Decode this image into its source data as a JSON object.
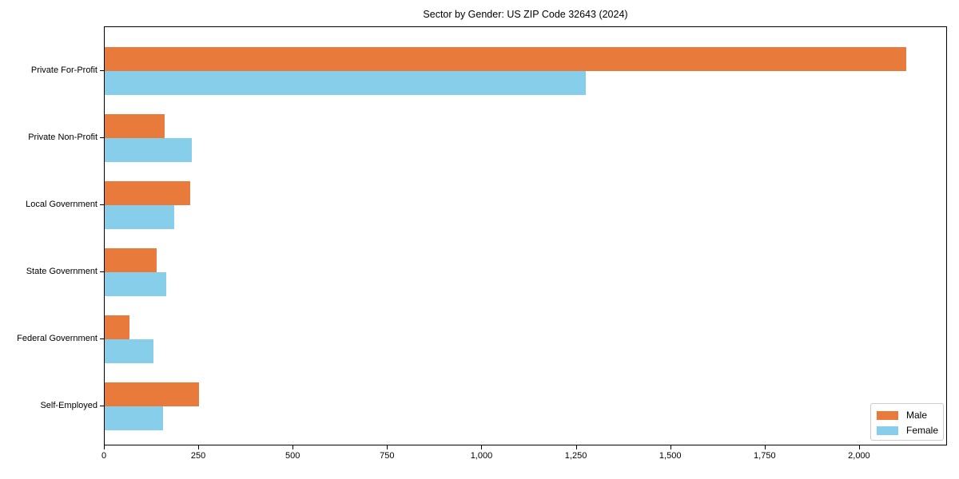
{
  "title": "Sector by Gender: US ZIP Code 32643 (2024)",
  "chart_data": {
    "type": "bar",
    "orientation": "horizontal",
    "title": "Sector by Gender: US ZIP Code 32643 (2024)",
    "xlabel": "",
    "ylabel": "",
    "categories": [
      "Private For-Profit",
      "Private Non-Profit",
      "Local Government",
      "State Government",
      "Federal Government",
      "Self-Employed"
    ],
    "series": [
      {
        "name": "Male",
        "color": "#e87a3c",
        "values": [
          2127,
          159,
          227,
          138,
          66,
          251
        ]
      },
      {
        "name": "Female",
        "color": "#87ceeb",
        "values": [
          1276,
          232,
          185,
          164,
          130,
          154
        ]
      }
    ],
    "xlim": [
      0,
      2233
    ],
    "xticks": [
      0,
      250,
      500,
      750,
      1000,
      1250,
      1500,
      1750,
      2000
    ],
    "xtick_labels": [
      "0",
      "250",
      "500",
      "750",
      "1,000",
      "1,250",
      "1,500",
      "1,750",
      "2,000"
    ],
    "grid": false,
    "legend_position": "lower right"
  },
  "legend": {
    "items": [
      {
        "label": "Male",
        "color": "#e87a3c"
      },
      {
        "label": "Female",
        "color": "#87ceeb"
      }
    ]
  }
}
